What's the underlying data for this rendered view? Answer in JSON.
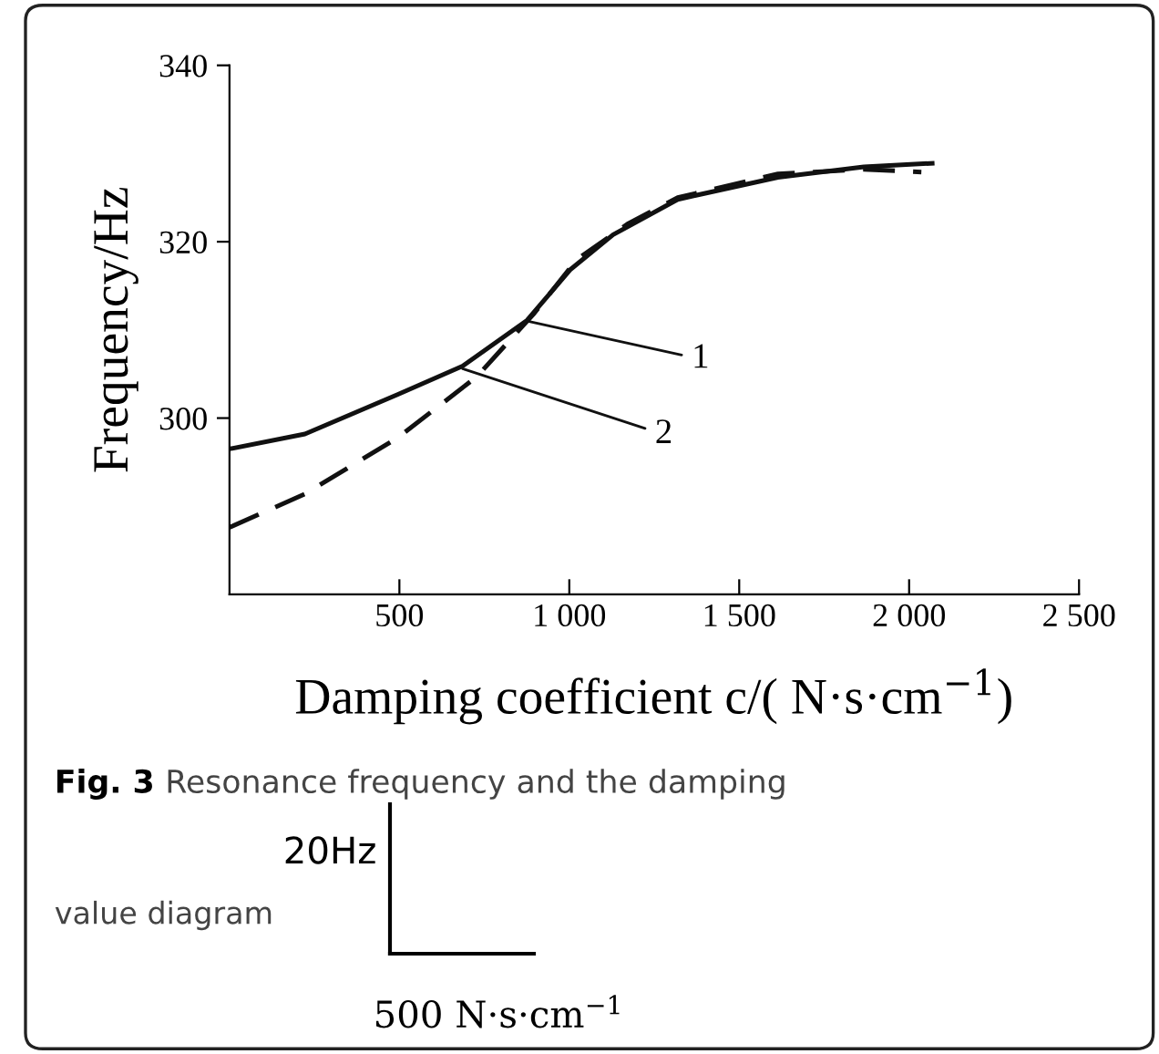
{
  "chart_data": {
    "type": "line",
    "xlabel": "Damping coefficient c/( N·s·cm$^{−1}$)",
    "ylabel": "Frequency/Hz",
    "xlim": [
      0,
      2500
    ],
    "ylim": [
      280,
      340
    ],
    "xticks": [
      500,
      {
        "value": 1000,
        "label": "1 000"
      },
      {
        "value": 1500,
        "label": "1 500"
      },
      {
        "value": 2000,
        "label": "2 000"
      },
      {
        "value": 2500,
        "label": "2 500"
      }
    ],
    "yticks": [
      300,
      320,
      340
    ],
    "grid": false,
    "legend": false,
    "marker": "none",
    "series": [
      {
        "color": "#111111",
        "line_style": "solid",
        "x": [
          0,
          222,
          496,
          686,
          876,
          1002,
          1129,
          1319,
          1614,
          1867,
          2068
        ],
        "values": [
          296.5,
          298.2,
          302.7,
          305.9,
          311.1,
          316.8,
          320.8,
          324.8,
          327.3,
          328.5,
          328.9
        ]
      },
      {
        "color": "#111111",
        "line_style": "dashed",
        "x": [
          0,
          222,
          496,
          728,
          897,
          1023,
          1171,
          1319,
          1614,
          1867,
          2036
        ],
        "values": [
          287.6,
          291.4,
          297.8,
          304.7,
          311.9,
          318,
          322,
          325,
          327.7,
          328.2,
          327.9
        ]
      }
    ],
    "annotations": [
      {
        "text": "1",
        "x": 876,
        "y": 311
      },
      {
        "text": "2",
        "x": 686,
        "y": 305.6
      },
      "Fig. 3 Resonance frequency and the damping",
      "value diagram",
      "20Hz",
      "500 N·s·cm$^{−1}$"
    ]
  }
}
